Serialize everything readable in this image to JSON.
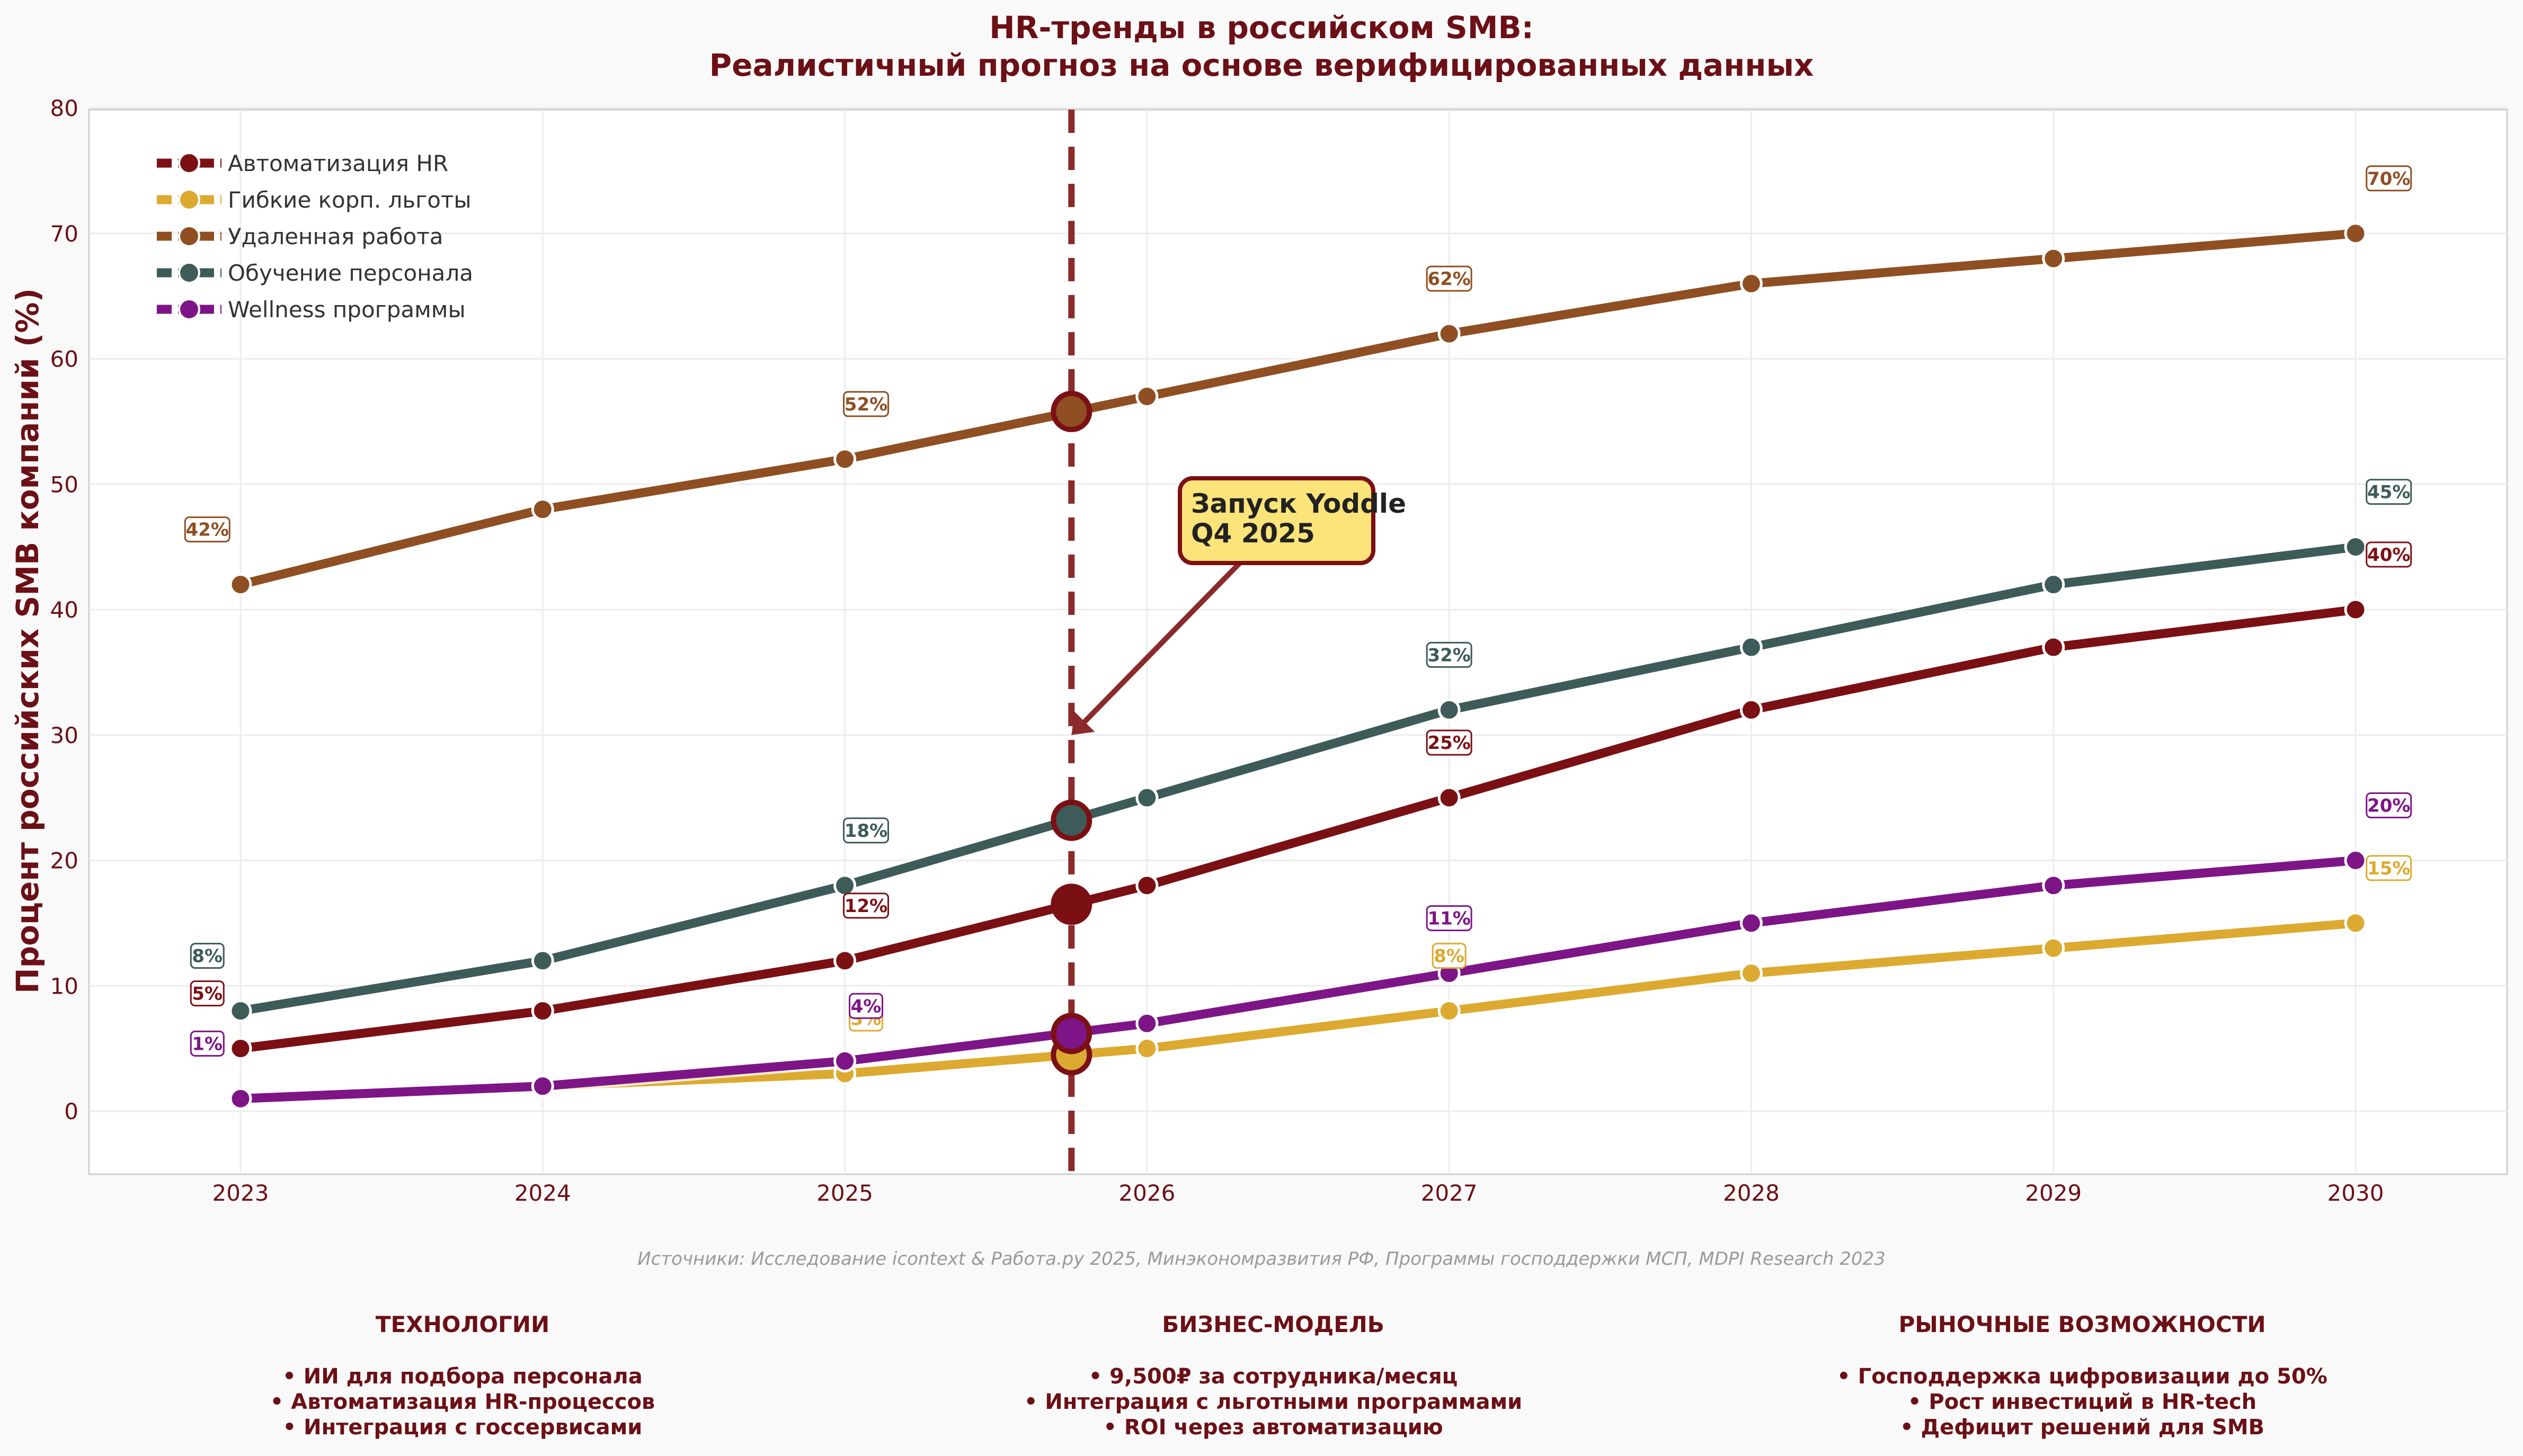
{
  "chart_data": {
    "type": "line",
    "title": [
      "HR-тренды в российском SMB:",
      "Реалистичный прогноз на основе верифицированных данных"
    ],
    "xlabel": "",
    "ylabel": "Процент российских SMB компаний (%)",
    "x": [
      2023,
      2024,
      2025,
      2026,
      2027,
      2028,
      2029,
      2030
    ],
    "xlim": [
      2022.5,
      2030.5
    ],
    "ylim": [
      -5,
      80
    ],
    "yticks": [
      0,
      10,
      20,
      30,
      40,
      50,
      60,
      70,
      80
    ],
    "grid": true,
    "legend_position": "top-left",
    "series": [
      {
        "name": "Автоматизация HR",
        "color": "#7b1014",
        "values": [
          5,
          8,
          12,
          18,
          25,
          32,
          37,
          40
        ],
        "labeled": [
          5,
          12,
          25,
          40
        ],
        "marker_2025_75": 16.5
      },
      {
        "name": "Гибкие корп. льготы",
        "color": "#dcaa30",
        "values": [
          1,
          2,
          3,
          5,
          8,
          11,
          13,
          15
        ],
        "labeled": [
          1,
          3,
          8,
          15
        ],
        "marker_2025_75": 4.5
      },
      {
        "name": "Удаленная работа",
        "color": "#8f4f22",
        "values": [
          42,
          48,
          52,
          57,
          62,
          66,
          68,
          70
        ],
        "labeled": [
          42,
          52,
          62,
          70
        ],
        "marker_2025_75": 55.8
      },
      {
        "name": "Обучение персонала",
        "color": "#3d5b59",
        "values": [
          8,
          12,
          18,
          25,
          32,
          37,
          42,
          45
        ],
        "labeled": [
          8,
          18,
          32,
          45
        ],
        "marker_2025_75": 23.2
      },
      {
        "name": "Wellness программы",
        "color": "#7d1587",
        "values": [
          1,
          2,
          4,
          7,
          11,
          15,
          18,
          20
        ],
        "labeled": [
          1,
          4,
          11,
          20
        ],
        "marker_2025_75": 6.2
      }
    ],
    "data_labels": {
      "Автоматизация HR": [
        "5%",
        "12%",
        "25%",
        "40%"
      ],
      "Гибкие корп. льготы": [
        "1%",
        "3%",
        "8%",
        "15%"
      ],
      "Удаленная работа": [
        "42%",
        "52%",
        "62%",
        "70%"
      ],
      "Обучение персонала": [
        "8%",
        "18%",
        "32%",
        "45%"
      ],
      "Wellness программы": [
        "1%",
        "4%",
        "11%",
        "20%"
      ]
    },
    "vline": {
      "x": 2025.75,
      "color": "#8b2a2a"
    },
    "annotation": {
      "lines": [
        "Запуск Yoddle",
        "Q4 2025"
      ],
      "arrow_to": [
        2025.75,
        30
      ]
    }
  },
  "source_note": "Источники: Исследование icontext & Работа.ру 2025, Минэкономразвития РФ, Программы господдержки МСП, MDPI Research 2023",
  "bottom_columns": [
    {
      "title": "ТЕХНОЛОГИИ",
      "items": [
        "• ИИ для подбора персонала",
        "• Автоматизация HR-процессов",
        "• Интеграция с госсервисами"
      ]
    },
    {
      "title": "БИЗНЕС-МОДЕЛЬ",
      "items": [
        "• 9,500₽ за сотрудника/месяц",
        "• Интеграция с льготными программами",
        "• ROI через автоматизацию"
      ]
    },
    {
      "title": "РЫНОЧНЫЕ ВОЗМОЖНОСТИ",
      "items": [
        "• Господдержка цифровизации до 50%",
        "• Рост инвестиций в HR-tech",
        "• Дефицит решений для SMB"
      ]
    }
  ]
}
